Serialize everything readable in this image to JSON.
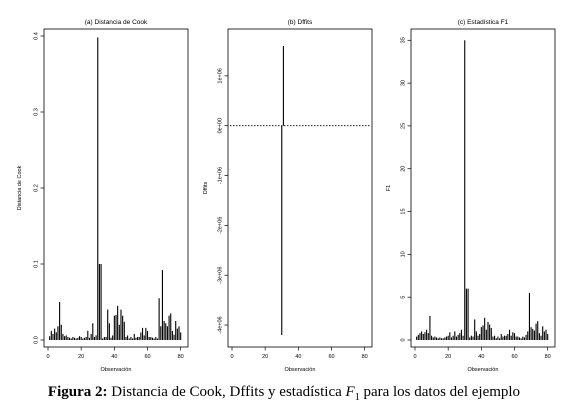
{
  "caption": {
    "label": "Figura 2:",
    "text_1": "Distancia de Cook, Dffits y estadística",
    "symbol": "F",
    "subscript": "1",
    "text_2": "para los datos del ejemplo"
  },
  "chart_data": [
    {
      "type": "bar",
      "title": "(a) Distancia de Cook",
      "xlabel": "Observación",
      "ylabel": "Distancia de Cook",
      "xlim": [
        0,
        82
      ],
      "ylim": [
        0,
        0.4
      ],
      "xticks": [
        0,
        20,
        40,
        60,
        80
      ],
      "xtick_labels": [
        "0",
        "20",
        "40",
        "60",
        "80"
      ],
      "yticks": [
        0,
        0.1,
        0.2,
        0.3,
        0.4
      ],
      "ytick_labels": [
        "0.0",
        "0.1",
        "0.2",
        "0.3",
        "0.4"
      ],
      "grid": false,
      "x": [
        1,
        2,
        3,
        4,
        5,
        6,
        7,
        8,
        9,
        10,
        11,
        12,
        13,
        14,
        15,
        16,
        17,
        18,
        19,
        20,
        21,
        22,
        23,
        24,
        25,
        26,
        27,
        28,
        29,
        30,
        31,
        32,
        33,
        34,
        35,
        36,
        37,
        38,
        39,
        40,
        41,
        42,
        43,
        44,
        45,
        46,
        47,
        48,
        49,
        50,
        51,
        52,
        53,
        54,
        55,
        56,
        57,
        58,
        59,
        60,
        61,
        62,
        63,
        64,
        65,
        66,
        67,
        68,
        69,
        70,
        71,
        72,
        73,
        74,
        75,
        76,
        77,
        78,
        79,
        80
      ],
      "values": [
        0.005,
        0.012,
        0.008,
        0.015,
        0.01,
        0.018,
        0.05,
        0.02,
        0.008,
        0.005,
        0.006,
        0.004,
        0.003,
        0.002,
        0.004,
        0.003,
        0.002,
        0.003,
        0.005,
        0.004,
        0.002,
        0.003,
        0.004,
        0.012,
        0.003,
        0.008,
        0.022,
        0.004,
        0.006,
        0.398,
        0.1,
        0.1,
        0.002,
        0.004,
        0.004,
        0.04,
        0.022,
        0.003,
        0.006,
        0.032,
        0.033,
        0.045,
        0.02,
        0.04,
        0.032,
        0.024,
        0.004,
        0.006,
        0.002,
        0.004,
        0.002,
        0.008,
        0.003,
        0.004,
        0.004,
        0.01,
        0.016,
        0.006,
        0.016,
        0.012,
        0.004,
        0.004,
        0.003,
        0.002,
        0.004,
        0.002,
        0.055,
        0.018,
        0.092,
        0.025,
        0.022,
        0.018,
        0.032,
        0.035,
        0.012,
        0.007,
        0.025,
        0.015,
        0.018,
        0.01
      ]
    },
    {
      "type": "bar",
      "title": "(b) Dffits",
      "xlabel": "Observación",
      "ylabel": "Dffits",
      "xlim": [
        0,
        82
      ],
      "ylim": [
        -4.3,
        1.8
      ],
      "xticks": [
        0,
        20,
        40,
        60,
        80
      ],
      "xtick_labels": [
        "0",
        "20",
        "40",
        "60",
        "80"
      ],
      "yticks": [
        -4,
        -3,
        -2,
        -1,
        0,
        1
      ],
      "ytick_labels": [
        "-4e+06",
        "-3e+06",
        "-2e+06",
        "-1e+06",
        "0e+00",
        "1e+06"
      ],
      "reference_line": 0,
      "grid": false,
      "x": [
        30,
        31
      ],
      "values": [
        -4.2,
        1.6
      ]
    },
    {
      "type": "bar",
      "title": "(c) Estadística F1",
      "xlabel": "Observación",
      "ylabel": "F1",
      "xlim": [
        0,
        82
      ],
      "ylim": [
        0,
        35.5
      ],
      "xticks": [
        0,
        20,
        40,
        60,
        80
      ],
      "xtick_labels": [
        "0",
        "20",
        "40",
        "60",
        "80"
      ],
      "yticks": [
        0,
        5,
        10,
        15,
        20,
        25,
        30,
        35
      ],
      "ytick_labels": [
        "0",
        "5",
        "10",
        "15",
        "20",
        "25",
        "30",
        "35"
      ],
      "grid": false,
      "x": [
        1,
        2,
        3,
        4,
        5,
        6,
        7,
        8,
        9,
        10,
        11,
        12,
        13,
        14,
        15,
        16,
        17,
        18,
        19,
        20,
        21,
        22,
        23,
        24,
        25,
        26,
        27,
        28,
        29,
        30,
        31,
        32,
        33,
        34,
        35,
        36,
        37,
        38,
        39,
        40,
        41,
        42,
        43,
        44,
        45,
        46,
        47,
        48,
        49,
        50,
        51,
        52,
        53,
        54,
        55,
        56,
        57,
        58,
        59,
        60,
        61,
        62,
        63,
        64,
        65,
        66,
        67,
        68,
        69,
        70,
        71,
        72,
        73,
        74,
        75,
        76,
        77,
        78,
        79,
        80
      ],
      "values": [
        0.4,
        0.6,
        0.8,
        1.0,
        0.7,
        0.9,
        1.2,
        0.8,
        2.8,
        0.5,
        0.3,
        0.4,
        0.3,
        0.2,
        0.3,
        0.2,
        0.2,
        0.3,
        0.4,
        0.5,
        0.9,
        0.3,
        0.5,
        1.0,
        0.4,
        0.6,
        0.8,
        1.2,
        0.5,
        35.0,
        6.0,
        6.0,
        0.3,
        0.5,
        0.4,
        2.4,
        1.0,
        0.5,
        0.7,
        1.5,
        1.7,
        2.6,
        1.2,
        2.1,
        1.8,
        1.4,
        0.4,
        0.5,
        0.2,
        0.4,
        0.2,
        0.7,
        0.4,
        0.5,
        0.5,
        0.7,
        1.2,
        0.5,
        0.9,
        0.8,
        0.4,
        0.4,
        0.3,
        0.2,
        0.4,
        0.3,
        0.6,
        1.0,
        5.5,
        1.5,
        1.3,
        1.1,
        1.9,
        2.2,
        0.8,
        0.5,
        1.6,
        1.0,
        1.2,
        0.7
      ]
    }
  ]
}
